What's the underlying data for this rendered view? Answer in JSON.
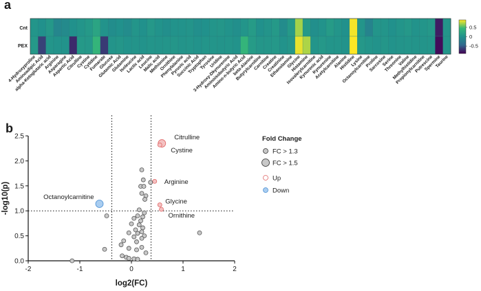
{
  "panel_a_label": "a",
  "panel_b_label": "b",
  "chart_data": [
    {
      "type": "heatmap",
      "title": "",
      "rows": [
        "Cnt",
        "PEX"
      ],
      "columns": [
        "4-Hydroxyproline",
        "Aminoadipic Acid",
        "alpha-Ketoglutaric acid",
        "Arginine",
        "Asparagine",
        "Aspartic Acid",
        "Citrulline",
        "Cystine",
        "Cytidine",
        "Fumarate",
        "Glucose",
        "Glutamic Acid",
        "Glutamine",
        "Isoleucine",
        "Lactic acid",
        "Leucine",
        "Malic acid",
        "Methionine",
        "Ornithine",
        "Phenylalanine",
        "Pyruvic acid",
        "Succinic Acid",
        "Tryptophan",
        "Tyrosine",
        "Uridine",
        "3-Hydroxy-Dkynurenine",
        "Aminoisobutyric Acid",
        "Amino-n-butyric Acid",
        "beta-Alanine",
        "Butyrylcarnitine",
        "Carnitine",
        "Creatine",
        "Creatinine",
        "Ethanolamine",
        "Glycine",
        "Histamine",
        "Isovalerylcarnitine",
        "Kynurenic acid",
        "Kynurenine",
        "Acetylcarnitine",
        "Alanine",
        "Histidine",
        "Lysine",
        "Octanoylcarnitine",
        "Proline",
        "Sarcosine",
        "Serine",
        "Threonine",
        "Valine",
        "Methylhistidine",
        "Propionylcarnitine",
        "Putrescine",
        "Spermine",
        "Taurine"
      ],
      "values": [
        [
          0.05,
          0.0,
          0.08,
          -0.12,
          -0.08,
          0.0,
          0.05,
          0.1,
          0.22,
          0.02,
          -0.04,
          0.0,
          -0.05,
          0.05,
          0.0,
          0.08,
          0.02,
          -0.02,
          0.02,
          0.02,
          0.04,
          -0.02,
          0.0,
          0.05,
          0.06,
          0.02,
          -0.02,
          0.05,
          0.12,
          0.0,
          0.04,
          0.1,
          -0.06,
          0.1,
          0.7,
          0.1,
          -0.02,
          0.02,
          0.12,
          0.05,
          0.0,
          0.88,
          0.05,
          -0.15,
          0.05,
          0.05,
          0.0,
          0.05,
          0.08,
          0.02,
          0.05,
          0.08,
          -0.78,
          0.05
        ],
        [
          0.08,
          -0.62,
          0.05,
          0.02,
          0.02,
          -0.72,
          0.1,
          0.08,
          0.42,
          -0.65,
          0.04,
          0.06,
          0.02,
          0.04,
          0.02,
          0.05,
          0.04,
          0.05,
          0.06,
          0.04,
          0.05,
          0.02,
          0.05,
          0.05,
          0.04,
          0.05,
          0.02,
          0.42,
          0.12,
          0.06,
          0.06,
          0.08,
          0.02,
          0.06,
          0.85,
          0.72,
          0.05,
          0.08,
          0.05,
          0.05,
          0.02,
          0.9,
          0.08,
          0.05,
          0.02,
          0.06,
          0.02,
          0.04,
          0.05,
          0.04,
          0.04,
          0.05,
          -0.85,
          0.05
        ]
      ],
      "colorbar": {
        "ticks": [
          0.5,
          0,
          -0.5
        ],
        "tick_labels": [
          "0.5",
          "0",
          "-0.5"
        ],
        "range": [
          -0.9,
          0.9
        ]
      },
      "colors": {
        "low": "#440154",
        "mid_low": "#31688e",
        "mid": "#21918c",
        "mid_high": "#35b779",
        "high": "#fde725"
      }
    },
    {
      "type": "scatter",
      "title": "",
      "xlabel": "log2(FC)",
      "ylabel": "-log10(p)",
      "xlim": [
        -2,
        2
      ],
      "ylim": [
        0,
        2.5
      ],
      "xticks": [
        -2,
        -1,
        0,
        1,
        2
      ],
      "yticks": [
        0.0,
        0.5,
        1.0,
        1.5,
        2.0,
        2.5
      ],
      "xtick_labels": [
        "-2",
        "-1",
        "0",
        "1",
        "2"
      ],
      "ytick_labels": [
        "0.0",
        "0.5",
        "1.0",
        "1.5",
        "2.0",
        "2.5"
      ],
      "threshold_lines": {
        "x": [
          -0.38,
          0.38
        ],
        "y": 1.0
      },
      "points": [
        {
          "x": 0.59,
          "y": 2.35,
          "group": "up",
          "size": "large",
          "label": "Citrulline"
        },
        {
          "x": 0.55,
          "y": 2.32,
          "group": "up",
          "size": "small",
          "label": "Cystine"
        },
        {
          "x": 0.45,
          "y": 1.59,
          "group": "up",
          "size": "small",
          "label": "Arginine"
        },
        {
          "x": 0.55,
          "y": 1.12,
          "group": "up",
          "size": "small",
          "label": "Glycine"
        },
        {
          "x": 0.58,
          "y": 1.03,
          "group": "up",
          "size": "small",
          "label": "Ornithine"
        },
        {
          "x": -0.62,
          "y": 1.14,
          "group": "down",
          "size": "large",
          "label": "Octanoylcarnitine"
        },
        {
          "x": 0.2,
          "y": 1.82,
          "group": "ns",
          "size": "small",
          "label": ""
        },
        {
          "x": 0.23,
          "y": 1.62,
          "group": "ns",
          "size": "small",
          "label": ""
        },
        {
          "x": 0.37,
          "y": 1.57,
          "group": "ns",
          "size": "small",
          "label": ""
        },
        {
          "x": 0.18,
          "y": 1.49,
          "group": "ns",
          "size": "small",
          "label": ""
        },
        {
          "x": 0.24,
          "y": 1.49,
          "group": "ns",
          "size": "small",
          "label": ""
        },
        {
          "x": 0.2,
          "y": 1.35,
          "group": "ns",
          "size": "small",
          "label": ""
        },
        {
          "x": 0.28,
          "y": 1.3,
          "group": "ns",
          "size": "small",
          "label": ""
        },
        {
          "x": 0.26,
          "y": 1.23,
          "group": "ns",
          "size": "small",
          "label": ""
        },
        {
          "x": 0.15,
          "y": 1.02,
          "group": "ns",
          "size": "small",
          "label": ""
        },
        {
          "x": 0.25,
          "y": 0.96,
          "group": "ns",
          "size": "small",
          "label": ""
        },
        {
          "x": 0.12,
          "y": 0.9,
          "group": "ns",
          "size": "small",
          "label": ""
        },
        {
          "x": 0.22,
          "y": 0.88,
          "group": "ns",
          "size": "small",
          "label": ""
        },
        {
          "x": 0.05,
          "y": 0.85,
          "group": "ns",
          "size": "small",
          "label": ""
        },
        {
          "x": 0.18,
          "y": 0.8,
          "group": "ns",
          "size": "small",
          "label": ""
        },
        {
          "x": 0.0,
          "y": 0.74,
          "group": "ns",
          "size": "small",
          "label": ""
        },
        {
          "x": 0.15,
          "y": 0.72,
          "group": "ns",
          "size": "small",
          "label": ""
        },
        {
          "x": 0.22,
          "y": 0.66,
          "group": "ns",
          "size": "small",
          "label": ""
        },
        {
          "x": 0.08,
          "y": 0.62,
          "group": "ns",
          "size": "small",
          "label": ""
        },
        {
          "x": 0.2,
          "y": 0.58,
          "group": "ns",
          "size": "small",
          "label": ""
        },
        {
          "x": -0.05,
          "y": 0.56,
          "group": "ns",
          "size": "small",
          "label": ""
        },
        {
          "x": 0.12,
          "y": 0.55,
          "group": "ns",
          "size": "small",
          "label": ""
        },
        {
          "x": 0.25,
          "y": 0.5,
          "group": "ns",
          "size": "small",
          "label": ""
        },
        {
          "x": 0.05,
          "y": 0.48,
          "group": "ns",
          "size": "small",
          "label": ""
        },
        {
          "x": 0.2,
          "y": 0.45,
          "group": "ns",
          "size": "small",
          "label": ""
        },
        {
          "x": -0.15,
          "y": 0.4,
          "group": "ns",
          "size": "small",
          "label": ""
        },
        {
          "x": 0.1,
          "y": 0.38,
          "group": "ns",
          "size": "small",
          "label": ""
        },
        {
          "x": -0.2,
          "y": 0.32,
          "group": "ns",
          "size": "small",
          "label": ""
        },
        {
          "x": 0.2,
          "y": 0.27,
          "group": "ns",
          "size": "small",
          "label": ""
        },
        {
          "x": -0.05,
          "y": 0.25,
          "group": "ns",
          "size": "small",
          "label": ""
        },
        {
          "x": 0.1,
          "y": 0.22,
          "group": "ns",
          "size": "small",
          "label": ""
        },
        {
          "x": 0.28,
          "y": 0.16,
          "group": "ns",
          "size": "small",
          "label": ""
        },
        {
          "x": -0.18,
          "y": 0.1,
          "group": "ns",
          "size": "small",
          "label": ""
        },
        {
          "x": -0.1,
          "y": 0.07,
          "group": "ns",
          "size": "small",
          "label": ""
        },
        {
          "x": -0.05,
          "y": 0.05,
          "group": "ns",
          "size": "small",
          "label": ""
        },
        {
          "x": 0.05,
          "y": 0.04,
          "group": "ns",
          "size": "small",
          "label": ""
        },
        {
          "x": 0.12,
          "y": 0.03,
          "group": "ns",
          "size": "small",
          "label": ""
        },
        {
          "x": -0.48,
          "y": 0.9,
          "group": "ns",
          "size": "small",
          "label": ""
        },
        {
          "x": -0.52,
          "y": 0.23,
          "group": "ns",
          "size": "small",
          "label": ""
        },
        {
          "x": 1.32,
          "y": 0.56,
          "group": "ns",
          "size": "small",
          "label": ""
        },
        {
          "x": -1.15,
          "y": 0.0,
          "group": "ns",
          "size": "small",
          "label": ""
        }
      ],
      "legend": {
        "title": "Fold Change",
        "position": "right",
        "items": [
          {
            "label": "FC > 1.3",
            "kind": "size-small"
          },
          {
            "label": "FC > 1.5",
            "kind": "size-large"
          },
          {
            "label": "Up",
            "kind": "up"
          },
          {
            "label": "Down",
            "kind": "down"
          }
        ]
      },
      "colors": {
        "up_fill": "#f4c2c2",
        "up_stroke": "#e06666",
        "down_fill": "#a9cdf0",
        "down_stroke": "#4a8fd4",
        "ns_fill": "#c8c8c8",
        "ns_stroke": "#555555"
      }
    }
  ]
}
